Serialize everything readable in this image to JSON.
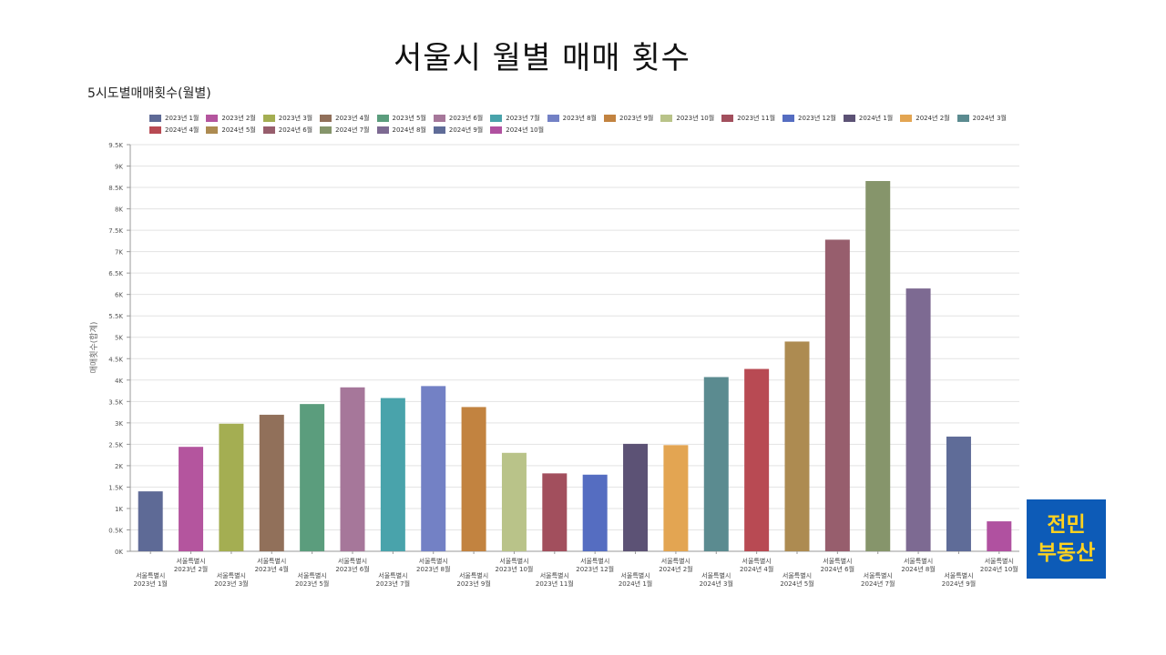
{
  "header": {
    "title": "서울시 월별 매매 횟수",
    "subtitle": "5시도별매매횟수(월별)"
  },
  "logo": {
    "line1": "전민",
    "line2": "부동산"
  },
  "chart_data": {
    "type": "bar",
    "title": "",
    "ylabel": "매매횟수(합계)",
    "xlabel": "",
    "ylim": [
      0,
      9500
    ],
    "yticks": [
      0,
      500,
      1000,
      1500,
      2000,
      2500,
      3000,
      3500,
      4000,
      4500,
      5000,
      5500,
      6000,
      6500,
      7000,
      7500,
      8000,
      8500,
      9000,
      9500
    ],
    "ytick_labels": [
      "0K",
      "0.5K",
      "1K",
      "1.5K",
      "2K",
      "2.5K",
      "3K",
      "3.5K",
      "4K",
      "4.5K",
      "5K",
      "5.5K",
      "6K",
      "6.5K",
      "7K",
      "7.5K",
      "8K",
      "8.5K",
      "9K",
      "9.5K"
    ],
    "grid": true,
    "legend_position": "top",
    "categories": [
      "2023년 1월",
      "2023년 2월",
      "2023년 3월",
      "2023년 4월",
      "2023년 5월",
      "2023년 6월",
      "2023년 7월",
      "2023년 8월",
      "2023년 9월",
      "2023년 10월",
      "2023년 11월",
      "2023년 12월",
      "2024년 1월",
      "2024년 2월",
      "2024년 3월",
      "2024년 4월",
      "2024년 5월",
      "2024년 6월",
      "2024년 7월",
      "2024년 8월",
      "2024년 9월",
      "2024년 10월"
    ],
    "region": "서울특별시",
    "values": [
      1400,
      2440,
      2980,
      3190,
      3440,
      3830,
      3580,
      3860,
      3370,
      2300,
      1820,
      1790,
      2510,
      2480,
      4070,
      4260,
      4900,
      7280,
      8650,
      6140,
      2680,
      700
    ],
    "colors": [
      "#5e6a96",
      "#b4559e",
      "#a4ae52",
      "#91705a",
      "#5b9d7d",
      "#a6779a",
      "#49a3ab",
      "#7381c5",
      "#c28340",
      "#b9c389",
      "#a24f5d",
      "#556dc1",
      "#5c5275",
      "#e3a552",
      "#5b8b90",
      "#b84a53",
      "#ad8b51",
      "#975e6d",
      "#86956b",
      "#7d6a92",
      "#5f6c98",
      "#b051a0"
    ]
  }
}
